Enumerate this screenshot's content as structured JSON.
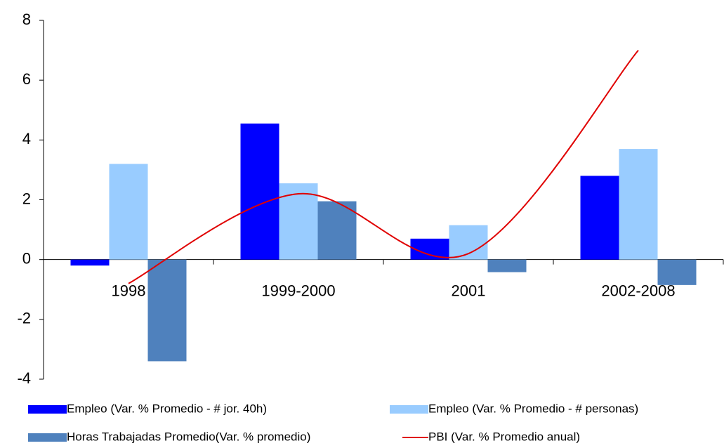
{
  "chart_data": {
    "type": "bar",
    "categories": [
      "1998",
      "1999-2000",
      "2001",
      "2002-2008"
    ],
    "series": [
      {
        "name": "Empleo (Var. % Promedio - # jor. 40h)",
        "color": "#0000ff",
        "type": "bar",
        "values": [
          -0.2,
          4.55,
          0.7,
          2.8
        ]
      },
      {
        "name": "Empleo (Var. % Promedio - # personas)",
        "color": "#99ccff",
        "type": "bar",
        "values": [
          3.2,
          2.55,
          1.15,
          3.7
        ]
      },
      {
        "name": "Horas Trabajadas Promedio(Var. % promedio)",
        "color": "#4f81bd",
        "type": "bar",
        "values": [
          -3.4,
          1.95,
          -0.42,
          -0.85
        ]
      },
      {
        "name": "PBI (Var. % Promedio anual)",
        "color": "#e00000",
        "type": "line",
        "values": [
          -0.8,
          2.2,
          0.2,
          7.0
        ]
      }
    ],
    "ylim": [
      -4,
      8
    ],
    "yticks": [
      -4,
      -2,
      0,
      2,
      4,
      6,
      8
    ],
    "grid": false
  }
}
